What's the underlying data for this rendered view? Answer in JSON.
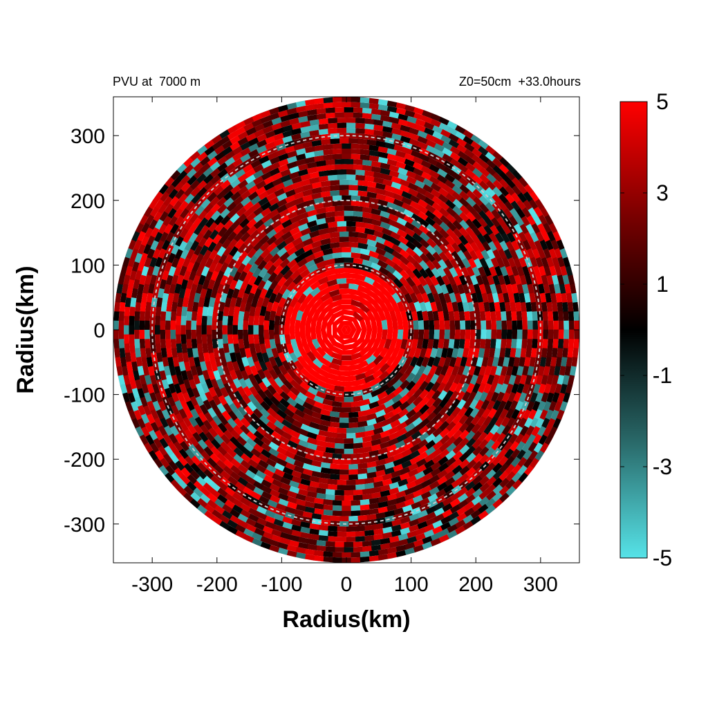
{
  "chart_data": {
    "type": "heatmap",
    "title_left": "PVU at  7000 m",
    "title_right": "Z0=50cm  +33.0hours",
    "xlabel": "Radius(km)",
    "ylabel": "Radius(km)",
    "xlim": [
      -360,
      360
    ],
    "ylim": [
      -360,
      360
    ],
    "x_ticks": [
      -300,
      -200,
      -100,
      0,
      100,
      200,
      300
    ],
    "y_ticks": [
      -300,
      -200,
      -100,
      0,
      100,
      200,
      300
    ],
    "x_tick_labels": [
      "-300",
      "-200",
      "-100",
      "0",
      "100",
      "200",
      "300"
    ],
    "y_tick_labels": [
      "-300",
      "-200",
      "-100",
      "0",
      "100",
      "200",
      "300"
    ],
    "domain_radius": 360,
    "range_rings": [
      100,
      200,
      300
    ],
    "ring_style": "dashed-lightgray",
    "colorbar": {
      "min": -5,
      "max": 5,
      "ticks": [
        5,
        3,
        1,
        -1,
        -3,
        -5
      ],
      "tick_labels": [
        "5",
        "3",
        "1",
        "-1",
        "-3",
        "-5"
      ],
      "colors": [
        "#56e3e8",
        "#2a6b6b",
        "#000000",
        "#7a0000",
        "#ff0000"
      ]
    },
    "field_summary": {
      "core": {
        "radius_max": 95,
        "value": 5
      },
      "scattered_minima": {
        "value": -4
      },
      "background_mean": 2
    }
  }
}
